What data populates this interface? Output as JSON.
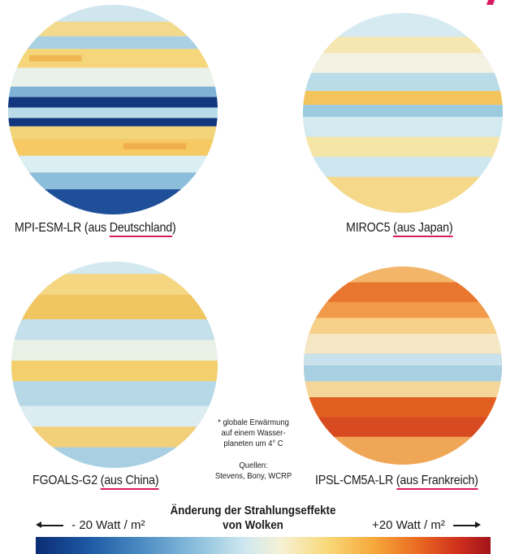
{
  "models": [
    {
      "name": "MPI-ESM-LR (aus ",
      "origin": "Deutschland",
      "suffix": ")"
    },
    {
      "name": "MIROC5 ",
      "origin": "(aus Japan)",
      "suffix": ""
    },
    {
      "name": "FGOALS-G2 ",
      "origin": "(aus China)",
      "suffix": ""
    },
    {
      "name": "IPSL-CM5A-LR ",
      "origin": "(aus Frankreich)",
      "suffix": ""
    }
  ],
  "footnote": {
    "line1": "* globale Erwärmung",
    "line2": "auf einem Wasser-",
    "line3": "planeten um 4° C",
    "sources_label": "Quellen:",
    "sources": "Stevens, Bony, WCRP"
  },
  "legend": {
    "title_line1": "Änderung der Strahlungseffekte",
    "title_line2": "von Wolken",
    "left": "- 20 Watt / m²",
    "right": "+20 Watt / m²"
  },
  "colors": {
    "accent": "#d81b60",
    "scale_min": "#0b2d74",
    "scale_mid": "#f6f1d4",
    "scale_max": "#a2141a"
  }
}
